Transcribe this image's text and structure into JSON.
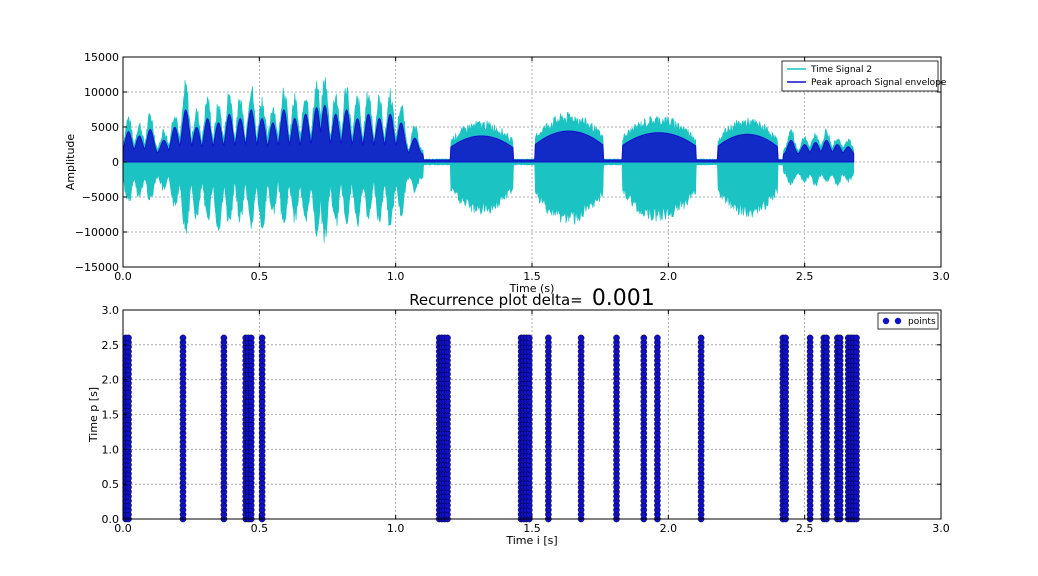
{
  "figure": {
    "title_prefix": "Recurrence plot delta=",
    "title_value": "0.001"
  },
  "chart_data": [
    {
      "type": "line",
      "title": "",
      "xlabel": "Time (s)",
      "ylabel": "Amplitude",
      "xlim": [
        0.0,
        3.0
      ],
      "ylim": [
        -15000,
        15000
      ],
      "xticks": [
        0.0,
        0.5,
        1.0,
        1.5,
        2.0,
        2.5,
        3.0
      ],
      "xtick_labels": [
        "0.0",
        "0.5",
        "1.0",
        "1.5",
        "2.0",
        "2.5",
        "3.0"
      ],
      "yticks": [
        -15000,
        -10000,
        -5000,
        0,
        5000,
        10000,
        15000
      ],
      "ytick_labels": [
        "−15000",
        "−10000",
        "−5000",
        "0",
        "5000",
        "10000",
        "15000"
      ],
      "grid": true,
      "legend_position": "top-right",
      "signal_duration": 2.68,
      "series": [
        {
          "name": "Time Signal 2",
          "color": "#1bc3c3",
          "peaks": [
            {
              "t": 0.02,
              "pos": 7000,
              "neg": -6500
            },
            {
              "t": 0.06,
              "pos": 6000,
              "neg": -5500
            },
            {
              "t": 0.1,
              "pos": 7500,
              "neg": -6000
            },
            {
              "t": 0.15,
              "pos": 5000,
              "neg": -4500
            },
            {
              "t": 0.19,
              "pos": 8000,
              "neg": -7000
            },
            {
              "t": 0.23,
              "pos": 12000,
              "neg": -11000
            },
            {
              "t": 0.27,
              "pos": 8000,
              "neg": -9000
            },
            {
              "t": 0.31,
              "pos": 10000,
              "neg": -9000
            },
            {
              "t": 0.35,
              "pos": 9000,
              "neg": -11000
            },
            {
              "t": 0.39,
              "pos": 11000,
              "neg": -10000
            },
            {
              "t": 0.43,
              "pos": 10000,
              "neg": -9000
            },
            {
              "t": 0.47,
              "pos": 12000,
              "neg": -10000
            },
            {
              "t": 0.51,
              "pos": 10000,
              "neg": -11000
            },
            {
              "t": 0.55,
              "pos": 9000,
              "neg": -8000
            },
            {
              "t": 0.59,
              "pos": 12000,
              "neg": -10000
            },
            {
              "t": 0.63,
              "pos": 10000,
              "neg": -9000
            },
            {
              "t": 0.67,
              "pos": 11000,
              "neg": -10000
            },
            {
              "t": 0.71,
              "pos": 12500,
              "neg": -11000
            },
            {
              "t": 0.74,
              "pos": 13000,
              "neg": -12000
            },
            {
              "t": 0.78,
              "pos": 11000,
              "neg": -10000
            },
            {
              "t": 0.82,
              "pos": 12000,
              "neg": -9000
            },
            {
              "t": 0.86,
              "pos": 10000,
              "neg": -10000
            },
            {
              "t": 0.9,
              "pos": 11000,
              "neg": -9000
            },
            {
              "t": 0.94,
              "pos": 10000,
              "neg": -9000
            },
            {
              "t": 0.98,
              "pos": 11000,
              "neg": -10000
            },
            {
              "t": 1.02,
              "pos": 9000,
              "neg": -8000
            },
            {
              "t": 1.07,
              "pos": 5500,
              "neg": -4500
            }
          ],
          "bursts": [
            {
              "start": 1.2,
              "end": 1.43,
              "amp": 8000
            },
            {
              "start": 1.51,
              "end": 1.76,
              "amp": 9500
            },
            {
              "start": 1.83,
              "end": 2.1,
              "amp": 9000
            },
            {
              "start": 2.18,
              "end": 2.4,
              "amp": 8500
            }
          ],
          "late_peaks": [
            {
              "t": 2.45,
              "pos": 5000,
              "neg": -3500
            },
            {
              "t": 2.5,
              "pos": 4000,
              "neg": -3000
            },
            {
              "t": 2.54,
              "pos": 4500,
              "neg": -3500
            },
            {
              "t": 2.58,
              "pos": 5000,
              "neg": -3000
            },
            {
              "t": 2.62,
              "pos": 4000,
              "neg": -3500
            },
            {
              "t": 2.66,
              "pos": 3500,
              "neg": -3000
            }
          ]
        },
        {
          "name": "Peak aproach Signal envelope",
          "color": "#1010c8"
        }
      ]
    },
    {
      "type": "scatter",
      "title": "",
      "xlabel": "Time i [s]",
      "ylabel": "Time p [s]",
      "xlim": [
        0.0,
        3.0
      ],
      "ylim": [
        0.0,
        3.0
      ],
      "xticks": [
        0.0,
        0.5,
        1.0,
        1.5,
        2.0,
        2.5,
        3.0
      ],
      "xtick_labels": [
        "0.0",
        "0.5",
        "1.0",
        "1.5",
        "2.0",
        "2.5",
        "3.0"
      ],
      "yticks": [
        0.0,
        0.5,
        1.0,
        1.5,
        2.0,
        2.5,
        3.0
      ],
      "ytick_labels": [
        "0.0",
        "0.5",
        "1.0",
        "1.5",
        "2.0",
        "2.5",
        "3.0"
      ],
      "grid": true,
      "legend_position": "top-right",
      "series": [
        {
          "name": "points",
          "color": "#1010c8",
          "x": [
            0.01,
            0.02,
            0.22,
            0.37,
            0.45,
            0.46,
            0.47,
            0.51,
            1.16,
            1.17,
            1.18,
            1.19,
            1.46,
            1.47,
            1.48,
            1.49,
            1.56,
            1.68,
            1.81,
            1.91,
            1.96,
            2.12,
            2.42,
            2.43,
            2.52,
            2.57,
            2.58,
            2.62,
            2.63,
            2.66,
            2.67,
            2.68,
            2.69
          ],
          "y_min": 0.0,
          "y_max": 2.6,
          "y_step": 0.065
        }
      ]
    }
  ]
}
